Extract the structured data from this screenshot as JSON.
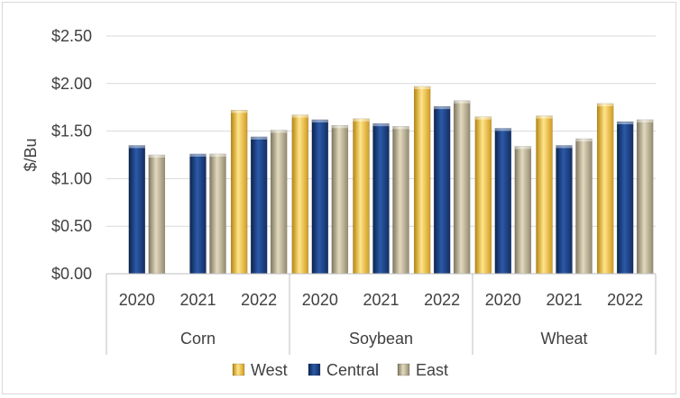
{
  "chart_data": {
    "type": "bar",
    "title": "",
    "xlabel": "",
    "ylabel": "$/Bu",
    "ylim": [
      0,
      2.5
    ],
    "ytick_values": [
      0,
      0.5,
      1.0,
      1.5,
      2.0,
      2.5
    ],
    "ytick_labels": [
      "$0.00",
      "$0.50",
      "$1.00",
      "$1.50",
      "$2.00",
      "$2.50"
    ],
    "grid": true,
    "legend_position": "bottom",
    "groups": [
      {
        "label": "Corn",
        "categories": [
          "2020",
          "2021",
          "2022"
        ]
      },
      {
        "label": "Soybean",
        "categories": [
          "2020",
          "2021",
          "2022"
        ]
      },
      {
        "label": "Wheat",
        "categories": [
          "2020",
          "2021",
          "2022"
        ]
      }
    ],
    "categories": [
      "Corn 2020",
      "Corn 2021",
      "Corn 2022",
      "Soybean 2020",
      "Soybean 2021",
      "Soybean 2022",
      "Wheat 2020",
      "Wheat 2021",
      "Wheat 2022"
    ],
    "series": [
      {
        "name": "West",
        "color": "#f2c44a",
        "values": [
          null,
          null,
          1.72,
          1.67,
          1.63,
          1.97,
          1.65,
          1.66,
          1.79
        ]
      },
      {
        "name": "Central",
        "color": "#1f3e7c",
        "values": [
          1.35,
          1.26,
          1.44,
          1.62,
          1.58,
          1.76,
          1.53,
          1.35,
          1.6
        ]
      },
      {
        "name": "East",
        "color": "#b0a58a",
        "values": [
          1.25,
          1.26,
          1.51,
          1.56,
          1.55,
          1.82,
          1.34,
          1.42,
          1.62
        ]
      }
    ]
  }
}
